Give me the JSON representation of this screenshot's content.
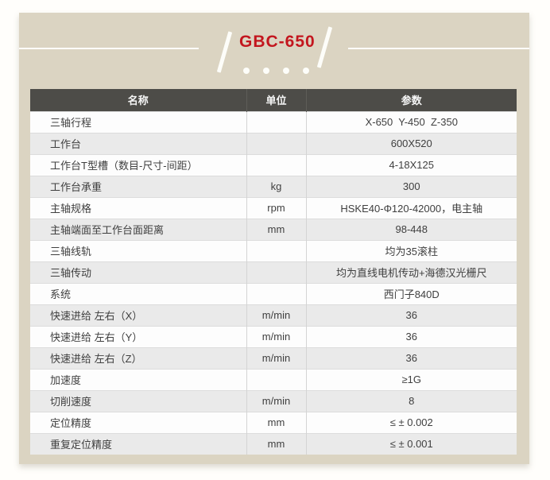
{
  "colors": {
    "page_bg": "#fffefb",
    "card_bg": "#dbd4c2",
    "title_red": "#c3161e",
    "header_bg": "#4d4c48",
    "row_alt_bg": "#eaeaea",
    "decor_white": "#fdfdf9"
  },
  "title": {
    "model": "GBC-650",
    "dots_count": 4
  },
  "table": {
    "columns": [
      {
        "key": "name",
        "label": "名称"
      },
      {
        "key": "unit",
        "label": "单位"
      },
      {
        "key": "value",
        "label": "参数"
      }
    ],
    "rows": [
      {
        "name": "三轴行程",
        "unit": "",
        "value": "X-650  Y-450  Z-350"
      },
      {
        "name": "工作台",
        "unit": "",
        "value": "600X520"
      },
      {
        "name": "工作台T型槽（数目-尺寸-间距）",
        "unit": "",
        "value": "4-18X125"
      },
      {
        "name": "工作台承重",
        "unit": "kg",
        "value": "300"
      },
      {
        "name": "主轴规格",
        "unit": "rpm",
        "value": "HSKE40-Φ120-42000，电主轴"
      },
      {
        "name": "主轴端面至工作台面距离",
        "unit": "mm",
        "value": "98-448"
      },
      {
        "name": "三轴线轨",
        "unit": "",
        "value": "均为35滚柱"
      },
      {
        "name": "三轴传动",
        "unit": "",
        "value": "均为直线电机传动+海德汉光栅尺"
      },
      {
        "name": "系统",
        "unit": "",
        "value": "西门子840D"
      },
      {
        "name": "快速进给 左右（X）",
        "unit": "m/min",
        "value": "36"
      },
      {
        "name": "快速进给 左右（Y）",
        "unit": "m/min",
        "value": "36"
      },
      {
        "name": "快速进给 左右（Z）",
        "unit": "m/min",
        "value": "36"
      },
      {
        "name": "加速度",
        "unit": "",
        "value": "≥1G"
      },
      {
        "name": "切削速度",
        "unit": "m/min",
        "value": "8"
      },
      {
        "name": "定位精度",
        "unit": "mm",
        "value": "≤ ± 0.002"
      },
      {
        "name": "重复定位精度",
        "unit": "mm",
        "value": "≤ ± 0.001"
      }
    ]
  }
}
